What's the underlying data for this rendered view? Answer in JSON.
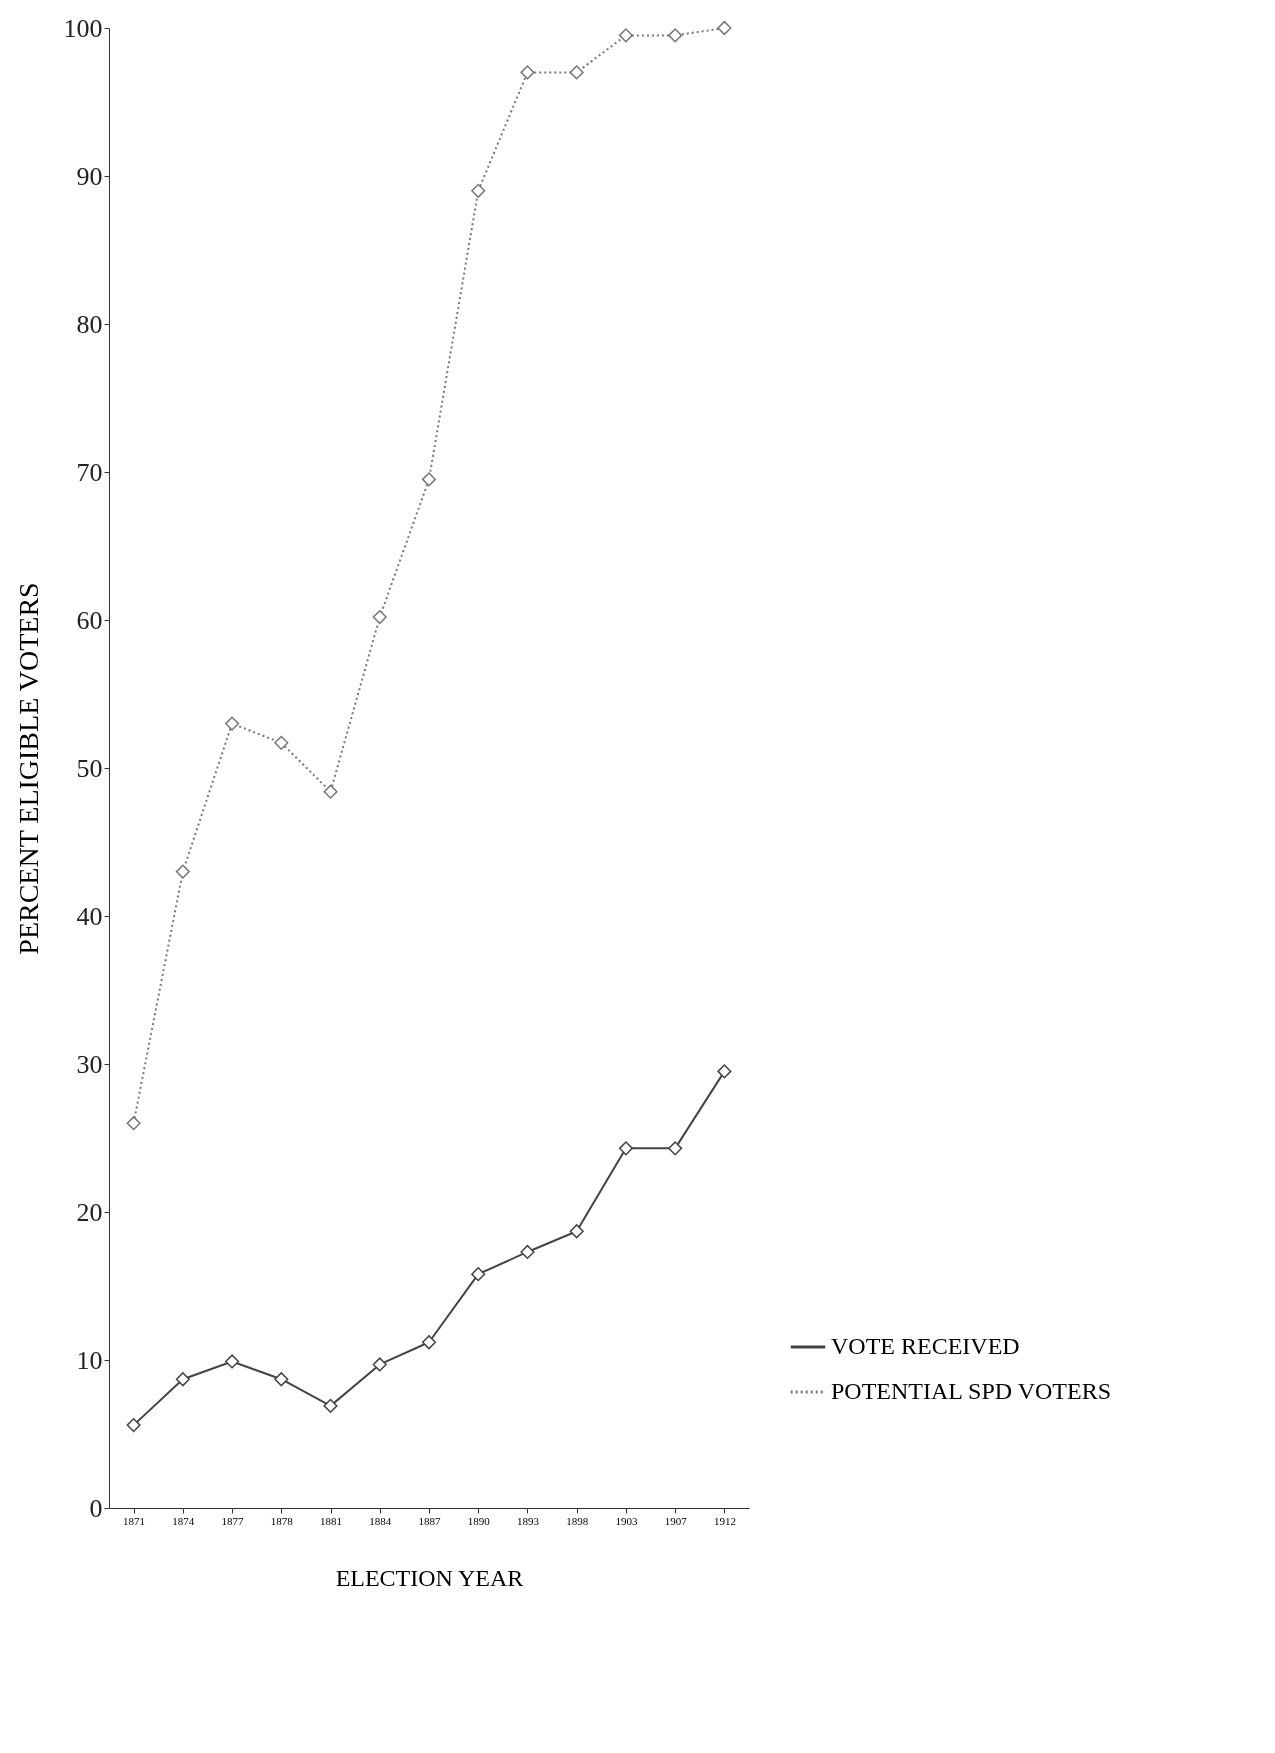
{
  "chart_data": {
    "type": "line",
    "xlabel": "ELECTION YEAR",
    "ylabel": "PERCENT ELIGIBLE VOTERS",
    "categories": [
      "1871",
      "1874",
      "1877",
      "1878",
      "1881",
      "1884",
      "1887",
      "1890",
      "1893",
      "1898",
      "1903",
      "1907",
      "1912"
    ],
    "series": [
      {
        "name": "VOTE RECEIVED",
        "color": "#444444",
        "line_style": "solid",
        "values": [
          5.6,
          8.7,
          9.9,
          8.7,
          6.9,
          9.7,
          11.2,
          15.8,
          17.3,
          18.7,
          24.3,
          24.3,
          29.5
        ]
      },
      {
        "name": "POTENTIAL SPD VOTERS",
        "color": "#777777",
        "line_style": "dotted",
        "values": [
          26,
          43,
          53,
          51.7,
          48.4,
          60.2,
          69.5,
          89,
          97,
          97,
          99.5,
          99.5,
          100
        ]
      }
    ],
    "ylim": [
      0,
      100
    ],
    "yticks": [
      0,
      10,
      20,
      30,
      40,
      50,
      60,
      70,
      80,
      90,
      100
    ],
    "grid": false,
    "marker": "diamond",
    "legend": "bottom right"
  }
}
